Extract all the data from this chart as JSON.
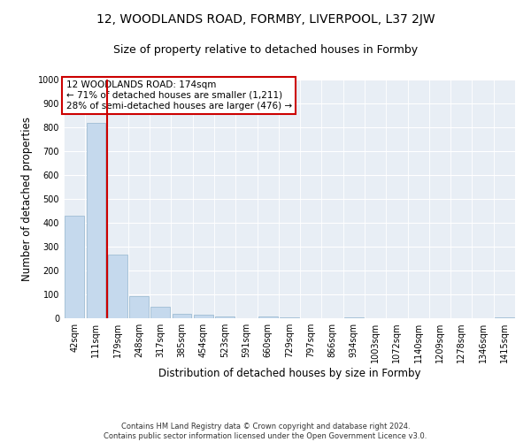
{
  "title_line1": "12, WOODLANDS ROAD, FORMBY, LIVERPOOL, L37 2JW",
  "title_line2": "Size of property relative to detached houses in Formby",
  "xlabel": "Distribution of detached houses by size in Formby",
  "ylabel": "Number of detached properties",
  "footnote": "Contains HM Land Registry data © Crown copyright and database right 2024.\nContains public sector information licensed under the Open Government Licence v3.0.",
  "annotation_line1": "12 WOODLANDS ROAD: 174sqm",
  "annotation_line2": "← 71% of detached houses are smaller (1,211)",
  "annotation_line3": "28% of semi-detached houses are larger (476) →",
  "bar_color": "#c5d9ed",
  "bar_edge_color": "#a0bdd4",
  "vline_color": "#cc0000",
  "annotation_box_edge_color": "#cc0000",
  "background_color": "#e8eef5",
  "categories": [
    "42sqm",
    "111sqm",
    "179sqm",
    "248sqm",
    "317sqm",
    "385sqm",
    "454sqm",
    "523sqm",
    "591sqm",
    "660sqm",
    "729sqm",
    "797sqm",
    "866sqm",
    "934sqm",
    "1003sqm",
    "1072sqm",
    "1140sqm",
    "1209sqm",
    "1278sqm",
    "1346sqm",
    "1415sqm"
  ],
  "values": [
    430,
    820,
    265,
    92,
    47,
    20,
    15,
    8,
    0,
    8,
    2,
    0,
    0,
    5,
    0,
    0,
    0,
    0,
    0,
    0,
    5
  ],
  "ylim": [
    0,
    1000
  ],
  "yticks": [
    0,
    100,
    200,
    300,
    400,
    500,
    600,
    700,
    800,
    900,
    1000
  ],
  "vline_x_index": 2,
  "title_fontsize": 10,
  "subtitle_fontsize": 9,
  "axis_label_fontsize": 8.5,
  "tick_fontsize": 7,
  "annotation_fontsize": 7.5,
  "footnote_fontsize": 6
}
